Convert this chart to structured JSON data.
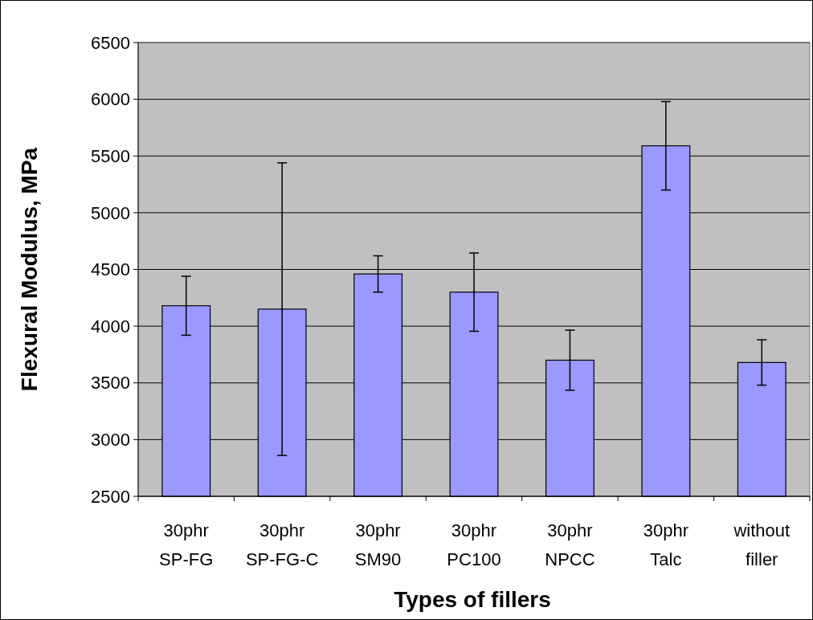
{
  "chart_data": {
    "type": "bar",
    "xlabel": "Types of fillers",
    "ylabel": "Flexural Modulus, MPa",
    "categories": [
      "30phr SP-FG",
      "30phr SP-FG-C",
      "30phr SM90",
      "30phr PC100",
      "30phr NPCC",
      "30phr Talc",
      "without filler"
    ],
    "values": [
      4180,
      4150,
      4460,
      4300,
      3700,
      5590,
      3680
    ],
    "errors": [
      260,
      1290,
      160,
      345,
      265,
      390,
      200
    ],
    "color": "#9999ff",
    "ylim": [
      2500,
      6500
    ],
    "yticks": [
      2500,
      3000,
      3500,
      4000,
      4500,
      5000,
      5500,
      6000,
      6500
    ],
    "grid": "y"
  }
}
